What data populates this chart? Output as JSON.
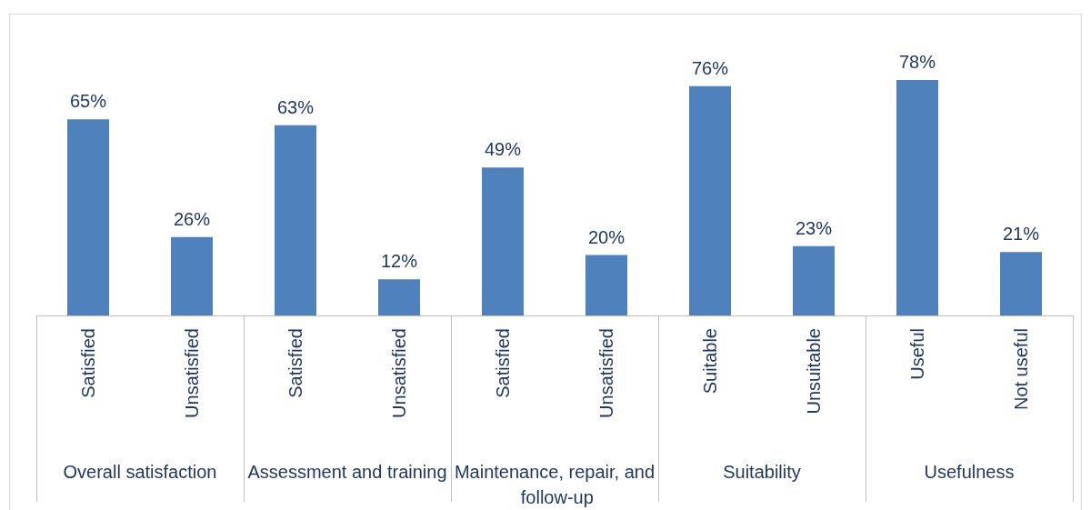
{
  "chart_data": {
    "type": "bar",
    "categories": [
      "Satisfied",
      "Unsatisfied",
      "Satisfied",
      "Unsatisfied",
      "Satisfied",
      "Unsatisfied",
      "Suitable",
      "Unsuitable",
      "Useful",
      "Not useful"
    ],
    "values": [
      65,
      26,
      63,
      12,
      49,
      20,
      76,
      23,
      78,
      21
    ],
    "value_labels": [
      "65%",
      "26%",
      "63%",
      "12%",
      "49%",
      "20%",
      "76%",
      "23%",
      "78%",
      "21%"
    ],
    "color": "#4f81bd",
    "ylim": [
      0,
      100
    ],
    "annotations": [
      "Overall satisfaction",
      "Assessment and training",
      "Maintenance, repair, and follow-up",
      "Suitability",
      "Usefulness"
    ]
  }
}
